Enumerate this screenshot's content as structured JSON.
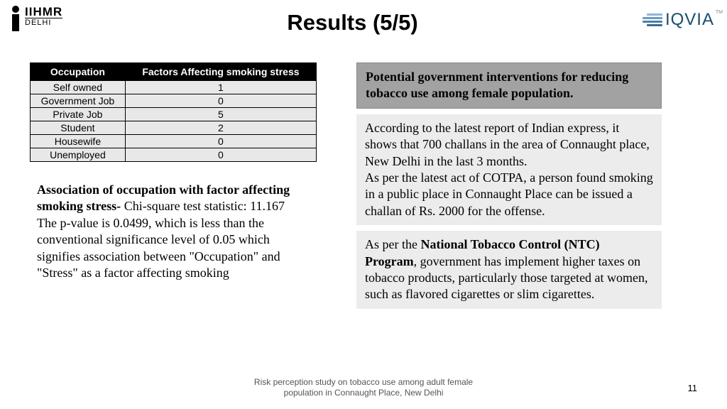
{
  "logo_left": {
    "line1": "IIHMR",
    "line2": "DELHI"
  },
  "logo_right": {
    "text": "IQVIA",
    "tm": "TM"
  },
  "title": "Results (5/5)",
  "table": {
    "header1": "Occupation",
    "header2": "Factors Affecting smoking stress",
    "rows": [
      {
        "occ": "Self owned",
        "val": "1"
      },
      {
        "occ": "Government Job",
        "val": "0"
      },
      {
        "occ": "Private Job",
        "val": "5"
      },
      {
        "occ": "Student",
        "val": "2"
      },
      {
        "occ": "Housewife",
        "val": "0"
      },
      {
        "occ": "Unemployed",
        "val": "0"
      }
    ]
  },
  "analysis": {
    "bold": "Association of occupation with factor affecting smoking stress- ",
    "rest1": "Chi-square test statistic: 11.167",
    "rest2": "The p-value is 0.0499, which is less than the conventional significance level of 0.05 which signifies association between \"Occupation\" and \"Stress\" as a factor affecting smoking"
  },
  "right": {
    "heading": "Potential government interventions for reducing tobacco use among female population.",
    "para1": "According to the latest report of Indian express, it shows that 700 challans in the area of Connaught place, New Delhi in the last 3 months.",
    "para1b": "As per the latest act of COTPA, a person found smoking in a public place in Connaught Place can be issued a challan of Rs. 2000 for the offense.",
    "para2_pre": "As per the ",
    "para2_bold": "National Tobacco Control (NTC) Program",
    "para2_post": ", government has implement higher taxes on tobacco products, particularly those targeted at women, such as flavored cigarettes or slim cigarettes."
  },
  "footer": {
    "line1": "Risk perception study on tobacco use among adult female",
    "line2": "population in Connaught Place, New Delhi"
  },
  "page": "11"
}
